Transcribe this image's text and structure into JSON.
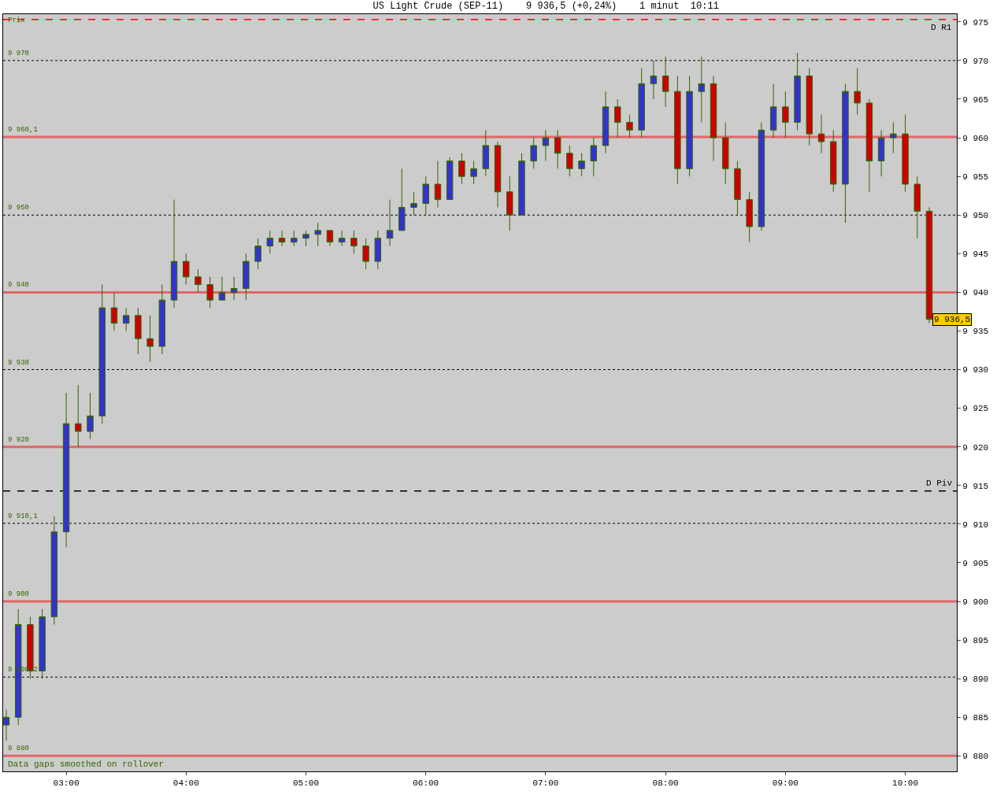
{
  "chart_data": {
    "type": "candlestick",
    "title": "US Light Crude (SEP-11)    9 936,5 (+0,24%)    1 minut  10:11",
    "x": [
      2.5,
      2.6,
      2.7,
      2.8,
      2.9,
      3.0,
      3.1,
      3.2,
      3.3,
      3.4,
      3.5,
      3.6,
      3.7,
      3.8,
      3.9,
      4.0,
      4.1,
      4.2,
      4.3,
      4.4,
      4.5,
      4.6,
      4.7,
      4.8,
      4.9,
      5.0,
      5.1,
      5.2,
      5.3,
      5.4,
      5.5,
      5.6,
      5.7,
      5.8,
      5.9,
      6.0,
      6.1,
      6.2,
      6.3,
      6.4,
      6.5,
      6.6,
      6.7,
      6.8,
      6.9,
      7.0,
      7.1,
      7.2,
      7.3,
      7.4,
      7.5,
      7.6,
      7.7,
      7.8,
      7.9,
      8.0,
      8.1,
      8.2,
      8.3,
      8.4,
      8.5,
      8.6,
      8.7,
      8.8,
      8.9,
      9.0,
      9.1,
      9.2,
      9.3,
      9.4,
      9.5,
      9.6,
      9.7,
      9.8,
      9.9,
      10.0,
      10.1,
      10.2
    ],
    "ohlc": [
      [
        9884,
        9886,
        9882,
        9885
      ],
      [
        9885,
        9899,
        9884,
        9897
      ],
      [
        9897,
        9898,
        9890,
        9891
      ],
      [
        9891,
        9899,
        9890,
        9898
      ],
      [
        9898,
        9911,
        9897,
        9909
      ],
      [
        9909,
        9927,
        9907,
        9923
      ],
      [
        9923,
        9928,
        9920,
        9922
      ],
      [
        9922,
        9927,
        9921,
        9924
      ],
      [
        9924,
        9941,
        9923,
        9938
      ],
      [
        9938,
        9940,
        9935,
        9936
      ],
      [
        9936,
        9938,
        9935,
        9937
      ],
      [
        9937,
        9938,
        9932,
        9934
      ],
      [
        9934,
        9937,
        9931,
        9933
      ],
      [
        9933,
        9941,
        9932,
        9939
      ],
      [
        9939,
        9952,
        9938,
        9944
      ],
      [
        9944,
        9945,
        9941,
        9942
      ],
      [
        9942,
        9943,
        9940,
        9941
      ],
      [
        9941,
        9942,
        9938,
        9939
      ],
      [
        9939,
        9942,
        9939,
        9940
      ],
      [
        9940,
        9942,
        9939,
        9940.5
      ],
      [
        9940.5,
        9945,
        9939,
        9944
      ],
      [
        9944,
        9947,
        9943,
        9946
      ],
      [
        9946,
        9948,
        9945,
        9947
      ],
      [
        9947,
        9948,
        9946,
        9946.5
      ],
      [
        9946.5,
        9948,
        9946,
        9947
      ],
      [
        9947,
        9948,
        9946,
        9947.5
      ],
      [
        9947.5,
        9949,
        9946,
        9948
      ],
      [
        9948,
        9948,
        9946,
        9946.5
      ],
      [
        9946.5,
        9948,
        9946,
        9947
      ],
      [
        9947,
        9948,
        9945,
        9946
      ],
      [
        9946,
        9947,
        9943,
        9944
      ],
      [
        9944,
        9948,
        9943,
        9947
      ],
      [
        9947,
        9952,
        9946,
        9948
      ],
      [
        9948,
        9956,
        9948,
        9951
      ],
      [
        9951,
        9953,
        9950,
        9951.5
      ],
      [
        9951.5,
        9955,
        9950,
        9954
      ],
      [
        9954,
        9957,
        9951,
        9952
      ],
      [
        9952,
        9957.5,
        9952,
        9957
      ],
      [
        9957,
        9958,
        9954,
        9955
      ],
      [
        9955,
        9957,
        9954,
        9956
      ],
      [
        9956,
        9961,
        9955,
        9959
      ],
      [
        9959,
        9959.5,
        9951,
        9953
      ],
      [
        9953,
        9955,
        9948,
        9950
      ],
      [
        9950,
        9958,
        9950,
        9957
      ],
      [
        9957,
        9960,
        9956,
        9959
      ],
      [
        9959,
        9961,
        9957,
        9960
      ],
      [
        9960,
        9961,
        9956,
        9958
      ],
      [
        9958,
        9959,
        9955,
        9956
      ],
      [
        9956,
        9958,
        9955,
        9957
      ],
      [
        9957,
        9960,
        9955,
        9959
      ],
      [
        9959,
        9966,
        9958,
        9964
      ],
      [
        9964,
        9965,
        9960,
        9962
      ],
      [
        9962,
        9963,
        9960,
        9961
      ],
      [
        9961,
        9969,
        9960,
        9967
      ],
      [
        9967,
        9970,
        9965,
        9968
      ],
      [
        9968,
        9970.5,
        9964,
        9966
      ],
      [
        9966,
        9968,
        9954,
        9956
      ],
      [
        9956,
        9968,
        9955,
        9966
      ],
      [
        9966,
        9970.5,
        9962,
        9967
      ],
      [
        9967,
        9968,
        9957,
        9960
      ],
      [
        9960,
        9962,
        9954,
        9956
      ],
      [
        9956,
        9957,
        9950,
        9952
      ],
      [
        9952,
        9953,
        9946.5,
        9948.5
      ],
      [
        9948.5,
        9962,
        9948,
        9961
      ],
      [
        9961,
        9967,
        9960,
        9964
      ],
      [
        9964,
        9966,
        9960,
        9962
      ],
      [
        9962,
        9971,
        9961,
        9968
      ],
      [
        9968,
        9969,
        9959,
        9960.5
      ],
      [
        9960.5,
        9963,
        9958,
        9959.5
      ],
      [
        9959.5,
        9961,
        9953,
        9954
      ],
      [
        9954,
        9967,
        9949,
        9966
      ],
      [
        9966,
        9969,
        9963,
        9964.5
      ],
      [
        9964.5,
        9965,
        9953,
        9957
      ],
      [
        9957,
        9961,
        9955,
        9960
      ],
      [
        9960,
        9962,
        9958,
        9960.5
      ],
      [
        9960.5,
        9963,
        9953,
        9954
      ],
      [
        9954,
        9955,
        9947,
        9950.5
      ],
      [
        9950.5,
        9951,
        9936,
        9936.5
      ]
    ],
    "color": "#336600",
    "colors": [
      "#3333cc",
      "#3333cc",
      "#cc0000",
      "#3333cc",
      "#3333cc",
      "#3333cc",
      "#cc0000",
      "#3333cc",
      "#3333cc",
      "#cc0000",
      "#3333cc",
      "#cc0000",
      "#cc0000",
      "#3333cc",
      "#3333cc",
      "#cc0000",
      "#cc0000",
      "#cc0000",
      "#3333cc",
      "#3333cc",
      "#3333cc",
      "#3333cc",
      "#3333cc",
      "#cc0000",
      "#3333cc",
      "#3333cc",
      "#3333cc",
      "#cc0000",
      "#3333cc",
      "#cc0000",
      "#cc0000",
      "#3333cc",
      "#3333cc",
      "#3333cc",
      "#3333cc",
      "#3333cc",
      "#cc0000",
      "#3333cc",
      "#cc0000",
      "#3333cc",
      "#3333cc",
      "#cc0000",
      "#cc0000",
      "#3333cc",
      "#3333cc",
      "#3333cc",
      "#cc0000",
      "#cc0000",
      "#3333cc",
      "#3333cc",
      "#3333cc",
      "#cc0000",
      "#cc0000",
      "#3333cc",
      "#3333cc",
      "#cc0000",
      "#cc0000",
      "#3333cc",
      "#3333cc",
      "#cc0000",
      "#cc0000",
      "#cc0000",
      "#cc0000",
      "#3333cc",
      "#3333cc",
      "#cc0000",
      "#3333cc",
      "#cc0000",
      "#cc0000",
      "#cc0000",
      "#3333cc",
      "#cc0000",
      "#cc0000",
      "#3333cc",
      "#3333cc",
      "#cc0000",
      "#cc0000",
      "#cc0000"
    ],
    "xlim": [
      2.474,
      10.43
    ],
    "ylim": [
      9878,
      9976
    ],
    "xticks": [
      {
        "value": 3,
        "label": "03:00"
      },
      {
        "value": 4,
        "label": "04:00"
      },
      {
        "value": 5,
        "label": "05:00"
      },
      {
        "value": 6,
        "label": "06:00"
      },
      {
        "value": 7,
        "label": "07:00"
      },
      {
        "value": 8,
        "label": "08:00"
      },
      {
        "value": 9,
        "label": "09:00"
      },
      {
        "value": 10,
        "label": "10:00"
      }
    ],
    "yticks": [
      {
        "value": 9880,
        "label": "9 880"
      },
      {
        "value": 9885,
        "label": "9 885"
      },
      {
        "value": 9890,
        "label": "9 890"
      },
      {
        "value": 9895,
        "label": "9 895"
      },
      {
        "value": 9900,
        "label": "9 900"
      },
      {
        "value": 9905,
        "label": "9 905"
      },
      {
        "value": 9910,
        "label": "9 910"
      },
      {
        "value": 9915,
        "label": "9 915"
      },
      {
        "value": 9920,
        "label": "9 920"
      },
      {
        "value": 9925,
        "label": "9 925"
      },
      {
        "value": 9930,
        "label": "9 930"
      },
      {
        "value": 9935,
        "label": "9 935"
      },
      {
        "value": 9940,
        "label": "9 940"
      },
      {
        "value": 9945,
        "label": "9 945"
      },
      {
        "value": 9950,
        "label": "9 950"
      },
      {
        "value": 9955,
        "label": "9 955"
      },
      {
        "value": 9960,
        "label": "9 960"
      },
      {
        "value": 9965,
        "label": "9 965"
      },
      {
        "value": 9970,
        "label": "9 970"
      },
      {
        "value": 9975,
        "label": "9 975"
      }
    ],
    "ref_lines": [
      {
        "axis": "y",
        "value": 9975.3,
        "label": "D R1",
        "color": "#ff0000",
        "line_style": "dashed"
      },
      {
        "axis": "y",
        "value": 9970,
        "label": "9 970",
        "color": "#000000",
        "line_style": "dotted"
      },
      {
        "axis": "y",
        "value": 9960.1,
        "label": "9 960,1",
        "color": "#e06666",
        "line_style": "solid"
      },
      {
        "axis": "y",
        "value": 9950,
        "label": "9 950",
        "color": "#000000",
        "line_style": "dotted"
      },
      {
        "axis": "y",
        "value": 9940,
        "label": "9 940",
        "color": "#e06666",
        "line_style": "solid"
      },
      {
        "axis": "y",
        "value": 9930,
        "label": "9 930",
        "color": "#000000",
        "line_style": "dotted"
      },
      {
        "axis": "y",
        "value": 9920,
        "label": "9 920",
        "color": "#e06666",
        "line_style": "solid"
      },
      {
        "axis": "y",
        "value": 9914.3,
        "label": "D Piv",
        "color": "#000000",
        "line_style": "dashed"
      },
      {
        "axis": "y",
        "value": 9910.1,
        "label": "9 910,1",
        "color": "#000000",
        "line_style": "dotted"
      },
      {
        "axis": "y",
        "value": 9900,
        "label": "9 900",
        "color": "#e06666",
        "line_style": "solid"
      },
      {
        "axis": "y",
        "value": 9890.2,
        "label": "9 890,2",
        "color": "#000000",
        "line_style": "dotted"
      },
      {
        "axis": "y",
        "value": 9880,
        "label": "9 880",
        "color": "#e06666",
        "line_style": "solid"
      }
    ],
    "annotations": [
      "Prix",
      "Data gaps smoothed on rollover",
      {
        "text": "9 936,5",
        "x": 10.2,
        "y": 9936.5
      }
    ],
    "grid": false
  }
}
